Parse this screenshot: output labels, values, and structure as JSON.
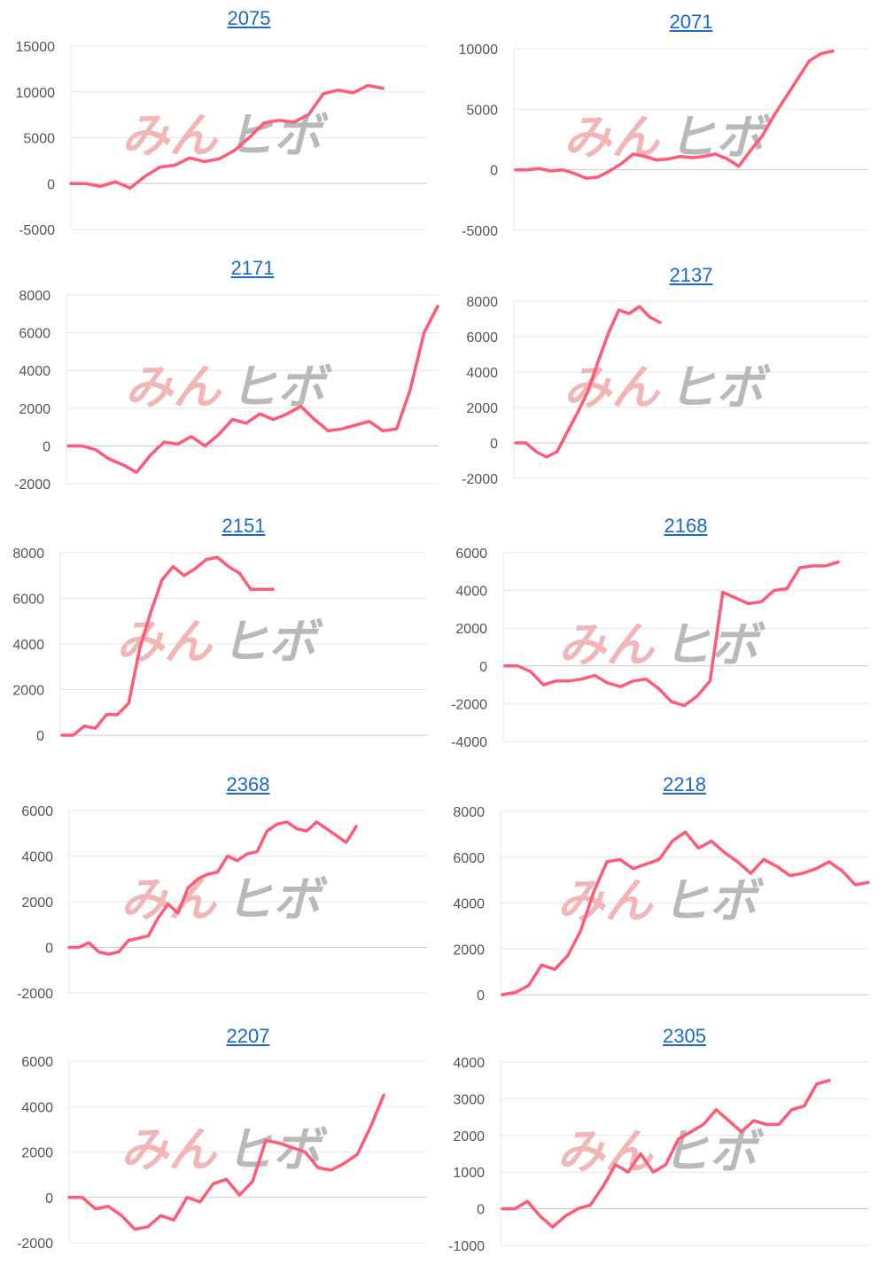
{
  "colors": {
    "line": "#ff5a76",
    "grid": "#e6e6e6",
    "zero": "#c8c8c8",
    "link": "#1a6ac9",
    "watermark_red": "#f2b6b6",
    "watermark_gray": "#b9b9b9"
  },
  "watermark": {
    "part1": "みん",
    "part2": "ヒボ"
  },
  "chart_data": [
    {
      "type": "line",
      "title": "2075",
      "ylim": [
        -5000,
        15000
      ],
      "ticks": [
        15000,
        10000,
        5000,
        0,
        -5000
      ],
      "values": [
        0,
        0,
        -300,
        200,
        -500,
        800,
        1800,
        2000,
        2800,
        2400,
        2700,
        3600,
        5000,
        6600,
        6900,
        6700,
        7500,
        9800,
        10200,
        9900,
        10700,
        10400
      ]
    },
    {
      "type": "line",
      "title": "2071",
      "ylim": [
        -5000,
        10000
      ],
      "ticks": [
        10000,
        5000,
        0,
        -5000
      ],
      "values": [
        0,
        0,
        100,
        -100,
        0,
        -300,
        -700,
        -600,
        -100,
        500,
        1300,
        1100,
        800,
        900,
        1100,
        1000,
        1100,
        1300,
        900,
        300,
        1600,
        2800,
        4500,
        6000,
        7500,
        9000,
        9600,
        9800
      ]
    },
    {
      "type": "line",
      "title": "2171",
      "ylim": [
        -2000,
        8000
      ],
      "ticks": [
        8000,
        6000,
        4000,
        2000,
        0,
        -2000
      ],
      "values": [
        0,
        0,
        -200,
        -700,
        -1000,
        -1400,
        -500,
        200,
        100,
        500,
        0,
        600,
        1400,
        1200,
        1700,
        1400,
        1700,
        2100,
        1400,
        800,
        900,
        1100,
        1300,
        800,
        900,
        3000,
        6000,
        7400
      ]
    },
    {
      "type": "line",
      "title": "2137",
      "ylim": [
        -2000,
        8000
      ],
      "ticks": [
        8000,
        6000,
        4000,
        2000,
        0,
        -2000
      ],
      "values": [
        0,
        0,
        -500,
        -800,
        -500,
        600,
        1700,
        2900,
        4600,
        6200,
        7500,
        7300,
        7700,
        7100,
        6800
      ]
    },
    {
      "type": "line",
      "title": "2151",
      "ylim": [
        0,
        8000
      ],
      "ticks": [
        8000,
        6000,
        4000,
        2000,
        0
      ],
      "values": [
        0,
        0,
        400,
        300,
        900,
        900,
        1400,
        3800,
        5400,
        6800,
        7400,
        7000,
        7300,
        7700,
        7800,
        7400,
        7100,
        6400,
        6400,
        6400
      ]
    },
    {
      "type": "line",
      "title": "2168",
      "ylim": [
        -4000,
        6000
      ],
      "ticks": [
        6000,
        4000,
        2000,
        0,
        -2000,
        -4000
      ],
      "values": [
        0,
        0,
        -300,
        -1000,
        -800,
        -800,
        -700,
        -500,
        -900,
        -1100,
        -800,
        -700,
        -1200,
        -1900,
        -2100,
        -1600,
        -800,
        3900,
        3600,
        3300,
        3400,
        4000,
        4100,
        5200,
        5300,
        5300,
        5500
      ]
    },
    {
      "type": "line",
      "title": "2368",
      "ylim": [
        -2000,
        6000
      ],
      "ticks": [
        6000,
        4000,
        2000,
        0,
        -2000
      ],
      "values": [
        0,
        0,
        200,
        -200,
        -300,
        -200,
        300,
        400,
        500,
        1300,
        1900,
        1500,
        2600,
        3000,
        3200,
        3300,
        4000,
        3800,
        4100,
        4200,
        5100,
        5400,
        5500,
        5200,
        5100,
        5500,
        5200,
        4900,
        4600,
        5300
      ]
    },
    {
      "type": "line",
      "title": "2218",
      "ylim": [
        0,
        8000
      ],
      "ticks": [
        8000,
        6000,
        4000,
        2000,
        0
      ],
      "values": [
        0,
        100,
        400,
        1300,
        1100,
        1700,
        2800,
        4500,
        5800,
        5900,
        5500,
        5700,
        5900,
        6700,
        7100,
        6400,
        6700,
        6200,
        5800,
        5300,
        5900,
        5600,
        5200,
        5300,
        5500,
        5800,
        5400,
        4800,
        4900
      ]
    },
    {
      "type": "line",
      "title": "2207",
      "ylim": [
        -2000,
        6000
      ],
      "ticks": [
        6000,
        4000,
        2000,
        0,
        -2000
      ],
      "values": [
        0,
        0,
        -500,
        -400,
        -800,
        -1400,
        -1300,
        -800,
        -1000,
        0,
        -200,
        600,
        800,
        100,
        700,
        2500,
        2400,
        2200,
        2000,
        1300,
        1200,
        1500,
        1900,
        3100,
        4500
      ]
    },
    {
      "type": "line",
      "title": "2305",
      "ylim": [
        -1000,
        4000
      ],
      "ticks": [
        4000,
        3000,
        2000,
        1000,
        0,
        -1000
      ],
      "values": [
        0,
        0,
        200,
        -200,
        -500,
        -200,
        0,
        100,
        600,
        1200,
        1000,
        1500,
        1000,
        1200,
        1900,
        2100,
        2300,
        2700,
        2400,
        2100,
        2400,
        2300,
        2300,
        2700,
        2800,
        3400,
        3500
      ]
    }
  ]
}
